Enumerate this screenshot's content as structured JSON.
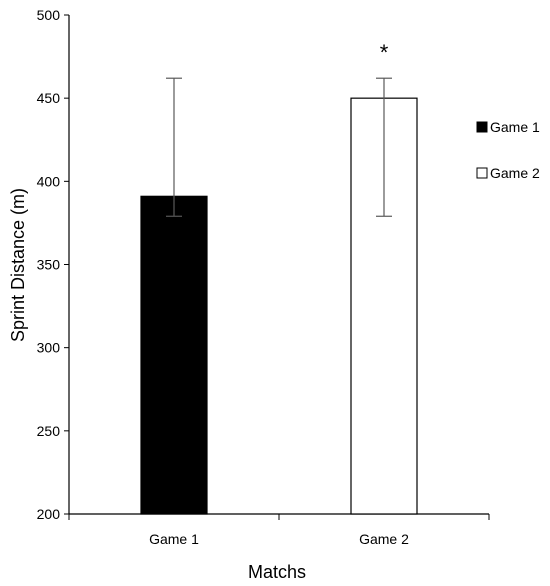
{
  "chart_data": {
    "type": "bar",
    "xlabel": "Matchs",
    "ylabel": "Sprint Distance (m)",
    "ylim": [
      200,
      500
    ],
    "yticks": [
      200,
      250,
      300,
      350,
      400,
      450,
      500
    ],
    "categories": [
      "Game 1",
      "Game 2"
    ],
    "series": [
      {
        "name": "Game 1",
        "values": [
          391,
          null
        ],
        "fill": "#000000"
      },
      {
        "name": "Game 2",
        "values": [
          null,
          450
        ],
        "fill": "#ffffff"
      }
    ],
    "bars": [
      {
        "category": "Game 1",
        "value": 391,
        "err_low": 379,
        "err_high": 462,
        "fill": "#000000",
        "annotation": ""
      },
      {
        "category": "Game 2",
        "value": 450,
        "err_low": 379,
        "err_high": 462,
        "fill": "#ffffff",
        "annotation": "*"
      }
    ],
    "legend": {
      "position": "right",
      "items": [
        {
          "label": "Game 1",
          "fill": "#000000"
        },
        {
          "label": "Game 2",
          "fill": "#ffffff"
        }
      ]
    },
    "grid": false,
    "colors": {
      "axis": "#000000",
      "error_bar": "#595959",
      "bar_edge": "#000000"
    }
  }
}
